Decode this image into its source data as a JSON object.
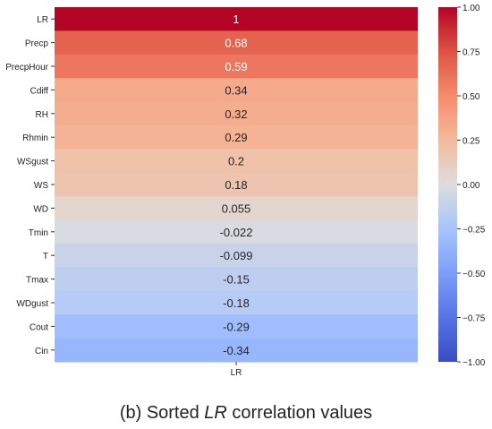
{
  "chart_data": {
    "type": "heatmap",
    "rows": [
      "LR",
      "Precp",
      "PrecpHour",
      "Cdiff",
      "RH",
      "Rhmin",
      "WSgust",
      "WS",
      "WD",
      "Tmin",
      "T",
      "Tmax",
      "WDgust",
      "Cout",
      "Cin"
    ],
    "columns": [
      "LR"
    ],
    "values": [
      1,
      0.68,
      0.59,
      0.34,
      0.32,
      0.29,
      0.2,
      0.18,
      0.055,
      -0.022,
      -0.099,
      -0.15,
      -0.18,
      -0.29,
      -0.34
    ],
    "value_labels": [
      "1",
      "0.68",
      "0.59",
      "0.34",
      "0.32",
      "0.29",
      "0.2",
      "0.18",
      "0.055",
      "-0.022",
      "-0.099",
      "-0.15",
      "-0.18",
      "-0.29",
      "-0.34"
    ],
    "colorbar": {
      "range": [
        -1,
        1
      ],
      "colormap": "coolwarm",
      "ticks": [
        1,
        0.75,
        0.5,
        0.25,
        0,
        -0.25,
        -0.5,
        -0.75,
        -1
      ],
      "tick_labels": [
        "1.00",
        "0.75",
        "0.50",
        "0.25",
        "0.00",
        "−0.25",
        "−0.50",
        "−0.75",
        "−1.00"
      ]
    }
  },
  "caption": {
    "prefix": "(b) Sorted ",
    "emphasis": "LR",
    "suffix": " correlation values"
  }
}
